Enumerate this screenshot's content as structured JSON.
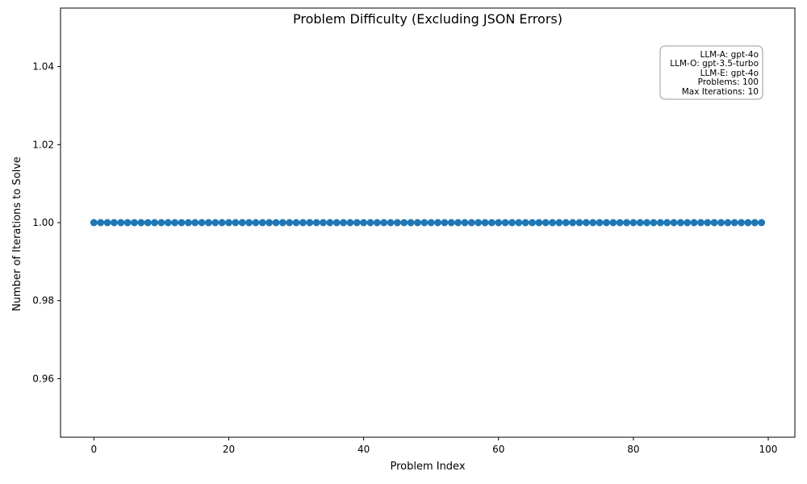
{
  "chart_data": {
    "type": "scatter",
    "title": "Problem Difficulty (Excluding JSON Errors)",
    "xlabel": "Problem Index",
    "ylabel": "Number of Iterations to Solve",
    "x": [
      0,
      1,
      2,
      3,
      4,
      5,
      6,
      7,
      8,
      9,
      10,
      11,
      12,
      13,
      14,
      15,
      16,
      17,
      18,
      19,
      20,
      21,
      22,
      23,
      24,
      25,
      26,
      27,
      28,
      29,
      30,
      31,
      32,
      33,
      34,
      35,
      36,
      37,
      38,
      39,
      40,
      41,
      42,
      43,
      44,
      45,
      46,
      47,
      48,
      49,
      50,
      51,
      52,
      53,
      54,
      55,
      56,
      57,
      58,
      59,
      60,
      61,
      62,
      63,
      64,
      65,
      66,
      67,
      68,
      69,
      70,
      71,
      72,
      73,
      74,
      75,
      76,
      77,
      78,
      79,
      80,
      81,
      82,
      83,
      84,
      85,
      86,
      87,
      88,
      89,
      90,
      91,
      92,
      93,
      94,
      95,
      96,
      97,
      98,
      99
    ],
    "y": [
      1,
      1,
      1,
      1,
      1,
      1,
      1,
      1,
      1,
      1,
      1,
      1,
      1,
      1,
      1,
      1,
      1,
      1,
      1,
      1,
      1,
      1,
      1,
      1,
      1,
      1,
      1,
      1,
      1,
      1,
      1,
      1,
      1,
      1,
      1,
      1,
      1,
      1,
      1,
      1,
      1,
      1,
      1,
      1,
      1,
      1,
      1,
      1,
      1,
      1,
      1,
      1,
      1,
      1,
      1,
      1,
      1,
      1,
      1,
      1,
      1,
      1,
      1,
      1,
      1,
      1,
      1,
      1,
      1,
      1,
      1,
      1,
      1,
      1,
      1,
      1,
      1,
      1,
      1,
      1,
      1,
      1,
      1,
      1,
      1,
      1,
      1,
      1,
      1,
      1,
      1,
      1,
      1,
      1,
      1,
      1,
      1,
      1,
      1,
      1
    ],
    "xlim": [
      -4.95,
      103.95
    ],
    "ylim": [
      0.945,
      1.055
    ],
    "x_ticks": [
      0,
      20,
      40,
      60,
      80,
      100
    ],
    "x_tick_labels": [
      "0",
      "20",
      "40",
      "60",
      "80",
      "100"
    ],
    "y_ticks": [
      0.96,
      0.98,
      1.0,
      1.02,
      1.04
    ],
    "y_tick_labels": [
      "0.96",
      "0.98",
      "1.00",
      "1.02",
      "1.04"
    ],
    "grid": false,
    "marker_color": "#1f77b4",
    "info_box": {
      "placement": "top-right",
      "lines": [
        "LLM-A: gpt-4o",
        "LLM-O: gpt-3.5-turbo",
        "LLM-E: gpt-4o",
        "Problems: 100",
        "Max Iterations: 10"
      ]
    }
  }
}
